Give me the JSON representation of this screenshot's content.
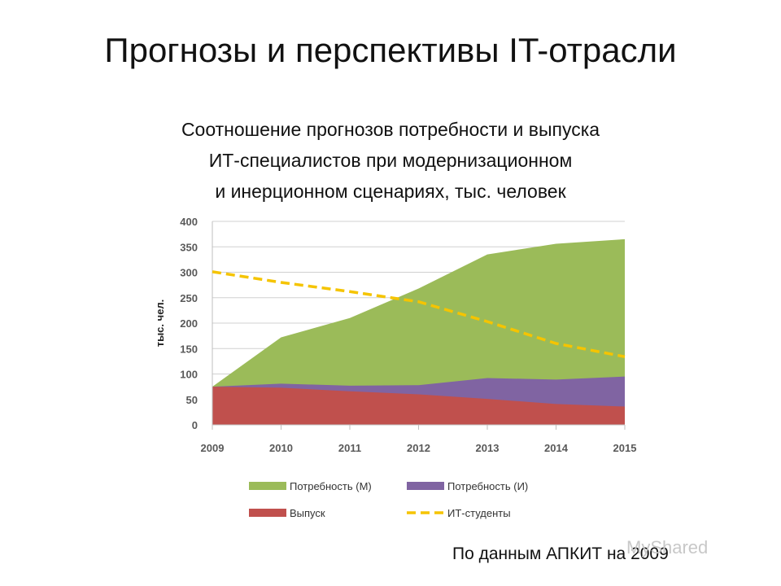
{
  "slide": {
    "title": "Прогнозы и перспективы IT-отрасли",
    "subtitle_lines": [
      "Соотношение прогнозов потребности и выпуска",
      "ИТ-специалистов при модернизационном",
      "и инерционном сценариях, тыс. человек"
    ],
    "source": "По данным АПКИТ на 2009",
    "watermark": "MyShared"
  },
  "chart_data": {
    "type": "area",
    "x": [
      "2009",
      "2010",
      "2011",
      "2012",
      "2013",
      "2014",
      "2015"
    ],
    "ylabel": "тыс. чел.",
    "ylim": [
      0,
      400
    ],
    "yticks": [
      0,
      50,
      100,
      150,
      200,
      250,
      300,
      350,
      400
    ],
    "grid": true,
    "legend_position": "bottom",
    "series": [
      {
        "name": "Потребность (М)",
        "type": "area",
        "color": "#9bbb59",
        "values": [
          75,
          172,
          210,
          268,
          335,
          356,
          365
        ]
      },
      {
        "name": "Потребность (И)",
        "type": "area",
        "color": "#8064a2",
        "values": [
          75,
          81,
          77,
          78,
          92,
          89,
          95
        ]
      },
      {
        "name": "Выпуск",
        "type": "area",
        "color": "#c0504d",
        "values": [
          75,
          73,
          66,
          60,
          51,
          41,
          36
        ]
      },
      {
        "name": "ИТ-студенты",
        "type": "line",
        "style": "dashed",
        "color": "#f5c400",
        "values": [
          301,
          280,
          262,
          242,
          203,
          160,
          134
        ]
      }
    ],
    "legend": [
      "Потребность (М)",
      "Потребность (И)",
      "Выпуск",
      "ИТ-студенты"
    ]
  }
}
